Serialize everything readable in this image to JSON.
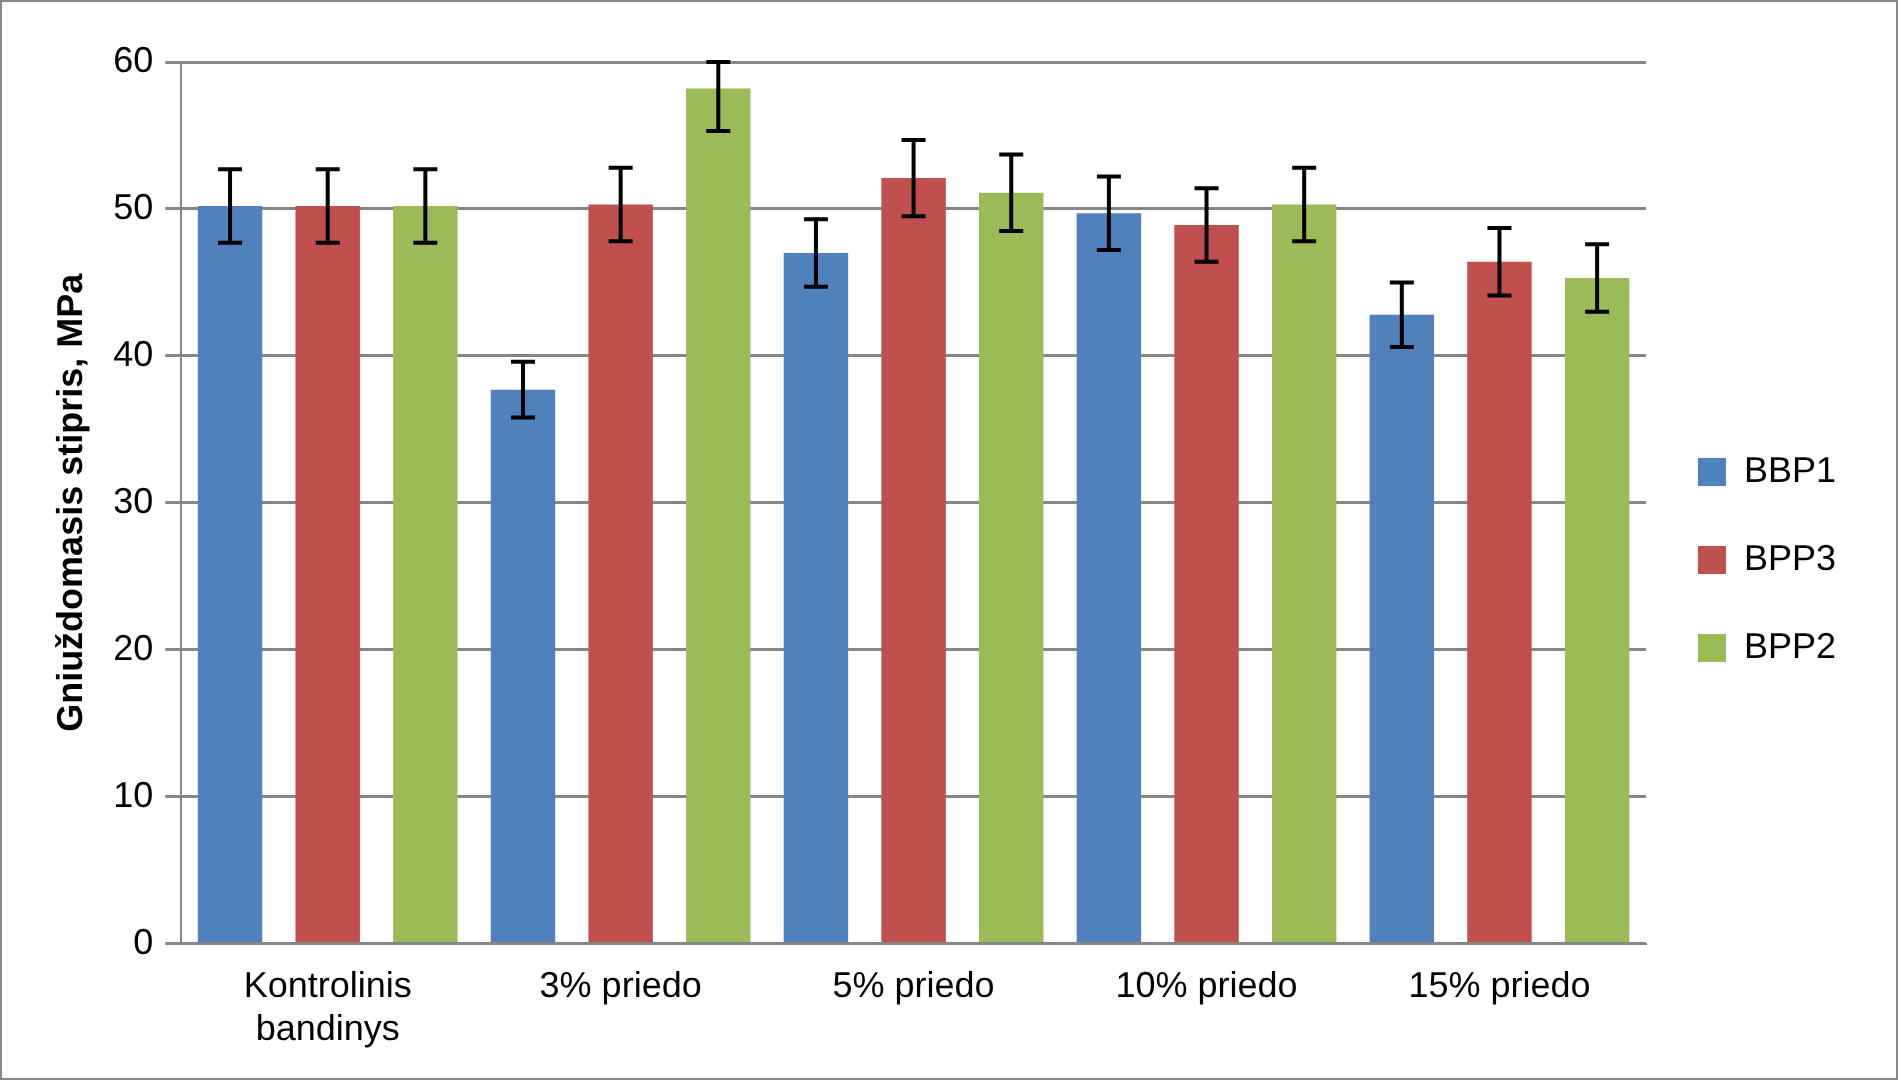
{
  "chart_data": {
    "type": "bar",
    "ylabel": "Gniuždomasis stipris, MPa",
    "categories": [
      "Kontrolinis bandinys",
      "3% priedo",
      "5% priedo",
      "10% priedo",
      "15% priedo"
    ],
    "series": [
      {
        "name": "BBP1",
        "color": "#4f81bd",
        "values": [
          50.2,
          37.7,
          47.0,
          49.7,
          42.8
        ],
        "errors": [
          2.5,
          1.9,
          2.3,
          2.5,
          2.2
        ]
      },
      {
        "name": "BPP3",
        "color": "#c0504d",
        "values": [
          50.2,
          50.3,
          52.1,
          48.9,
          46.4
        ],
        "errors": [
          2.5,
          2.5,
          2.6,
          2.5,
          2.3
        ]
      },
      {
        "name": "BPP2",
        "color": "#9bbb59",
        "values": [
          50.2,
          58.2,
          51.1,
          50.3,
          45.3
        ],
        "errors": [
          2.5,
          [
            55.3,
            60
          ],
          2.6,
          2.5,
          2.3
        ]
      }
    ],
    "ylim": [
      0,
      60
    ],
    "yticks": [
      0,
      10,
      20,
      30,
      40,
      50,
      60
    ],
    "grid": "y",
    "legend": "right"
  }
}
